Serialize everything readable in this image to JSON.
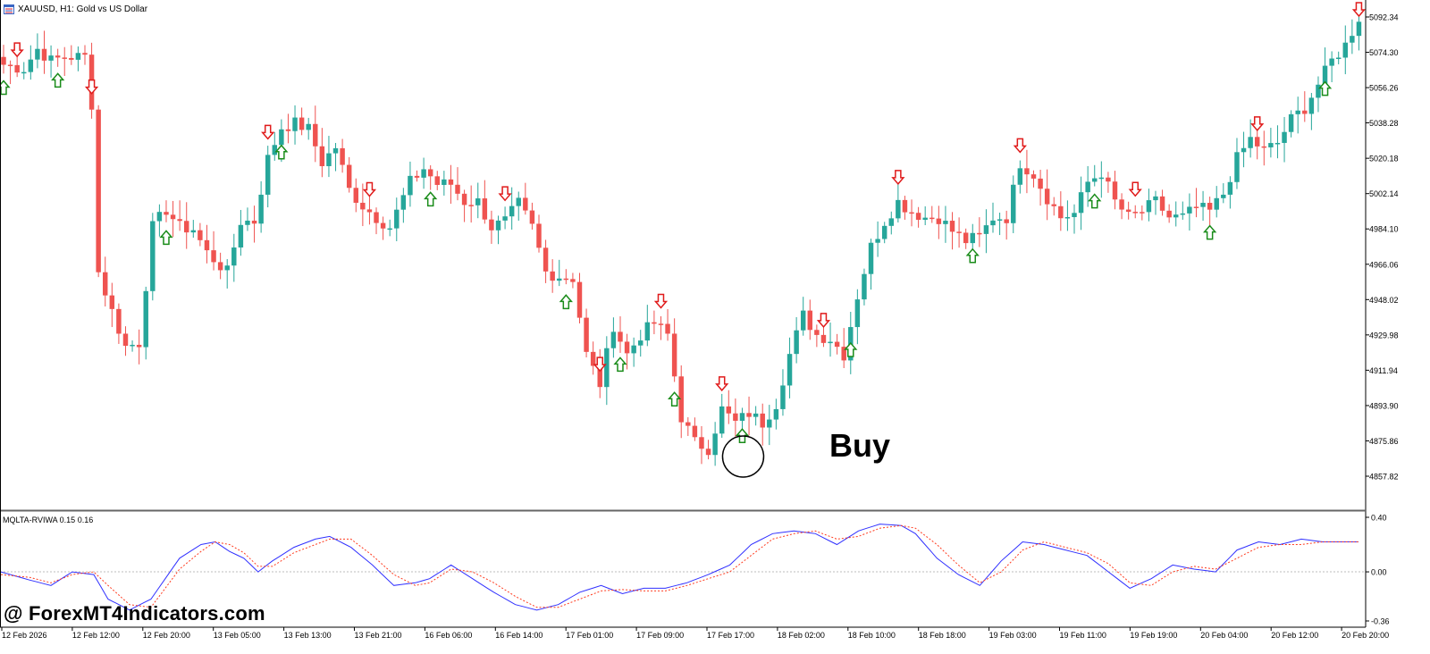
{
  "header": {
    "symbol_title": "XAUUSD, H1:  Gold vs US Dollar",
    "icon": "chart-window-icon"
  },
  "indicator": {
    "label": "MQLTA-RVIWA 0.15 0.16",
    "levels": [
      "0.40",
      "0.00",
      "-0.36"
    ]
  },
  "watermark": "@ ForexMT4Indicators.com",
  "annotation": {
    "text": "Buy"
  },
  "colors": {
    "bull": "#26a69a",
    "bear": "#ef5350",
    "arrow_up": "#1a8c1a",
    "arrow_down": "#e01b1b",
    "rvi_main": "#3030ff",
    "rvi_signal": "#ff3b1f",
    "axis": "#000000",
    "zero_line": "#bdbdbd"
  },
  "chart_data": [
    {
      "type": "candlestick",
      "price_levels": [
        "5092.34",
        "5074.30",
        "5056.26",
        "5038.28",
        "5020.18",
        "5002.14",
        "4984.10",
        "4966.06",
        "4948.02",
        "4929.98",
        "4911.94",
        "4893.90",
        "4875.86",
        "4857.82"
      ],
      "time_labels": [
        "12 Feb 2026",
        "12 Feb 12:00",
        "12 Feb 20:00",
        "13 Feb 05:00",
        "13 Feb 13:00",
        "13 Feb 21:00",
        "16 Feb 06:00",
        "16 Feb 14:00",
        "17 Feb 01:00",
        "17 Feb 09:00",
        "17 Feb 17:00",
        "18 Feb 02:00",
        "18 Feb 10:00",
        "18 Feb 18:00",
        "19 Feb 03:00",
        "19 Feb 11:00",
        "19 Feb 19:00",
        "20 Feb 04:00",
        "20 Feb 12:00",
        "20 Feb 20:00"
      ],
      "anchors": [
        [
          0,
          5068
        ],
        [
          3,
          5066
        ],
        [
          5,
          5076
        ],
        [
          7,
          5070
        ],
        [
          9,
          5072
        ],
        [
          12,
          5072
        ],
        [
          13,
          5048
        ],
        [
          14,
          4962
        ],
        [
          16,
          4942
        ],
        [
          18,
          4924
        ],
        [
          20,
          4926
        ],
        [
          22,
          4985
        ],
        [
          24,
          4994
        ],
        [
          26,
          4985
        ],
        [
          28,
          4984
        ],
        [
          30,
          4972
        ],
        [
          33,
          4962
        ],
        [
          35,
          4988
        ],
        [
          37,
          4988
        ],
        [
          39,
          5020
        ],
        [
          41,
          5036
        ],
        [
          43,
          5038
        ],
        [
          45,
          5035
        ],
        [
          47,
          5018
        ],
        [
          49,
          5026
        ],
        [
          51,
          5004
        ],
        [
          53,
          4996
        ],
        [
          55,
          4990
        ],
        [
          57,
          4985
        ],
        [
          60,
          5008
        ],
        [
          62,
          5015
        ],
        [
          64,
          5007
        ],
        [
          66,
          5007
        ],
        [
          68,
          4998
        ],
        [
          70,
          4998
        ],
        [
          72,
          4985
        ],
        [
          74,
          4988
        ],
        [
          76,
          4997
        ],
        [
          78,
          4985
        ],
        [
          80,
          4962
        ],
        [
          82,
          4960
        ],
        [
          84,
          4959
        ],
        [
          86,
          4920
        ],
        [
          88,
          4905
        ],
        [
          90,
          4935
        ],
        [
          92,
          4920
        ],
        [
          94,
          4930
        ],
        [
          96,
          4936
        ],
        [
          98,
          4930
        ],
        [
          100,
          4888
        ],
        [
          102,
          4875
        ],
        [
          104,
          4872
        ],
        [
          106,
          4892
        ],
        [
          108,
          4885
        ],
        [
          110,
          4890
        ],
        [
          112,
          4885
        ],
        [
          114,
          4895
        ],
        [
          116,
          4920
        ],
        [
          118,
          4940
        ],
        [
          120,
          4930
        ],
        [
          122,
          4928
        ],
        [
          124,
          4920
        ],
        [
          126,
          4950
        ],
        [
          128,
          4975
        ],
        [
          130,
          4988
        ],
        [
          132,
          4998
        ],
        [
          134,
          4993
        ],
        [
          136,
          4990
        ],
        [
          138,
          4990
        ],
        [
          140,
          4983
        ],
        [
          142,
          4978
        ],
        [
          144,
          4980
        ],
        [
          146,
          4990
        ],
        [
          148,
          4990
        ],
        [
          150,
          5018
        ],
        [
          152,
          5012
        ],
        [
          154,
          5000
        ],
        [
          156,
          4990
        ],
        [
          158,
          4992
        ],
        [
          160,
          5008
        ],
        [
          162,
          5013
        ],
        [
          164,
          4998
        ],
        [
          166,
          4990
        ],
        [
          168,
          4993
        ],
        [
          170,
          4998
        ],
        [
          172,
          4990
        ],
        [
          174,
          4990
        ],
        [
          176,
          4995
        ],
        [
          178,
          4993
        ],
        [
          180,
          5002
        ],
        [
          182,
          5020
        ],
        [
          184,
          5030
        ],
        [
          186,
          5024
        ],
        [
          188,
          5028
        ],
        [
          190,
          5040
        ],
        [
          192,
          5046
        ],
        [
          194,
          5058
        ],
        [
          196,
          5070
        ],
        [
          198,
          5078
        ],
        [
          200,
          5092
        ]
      ],
      "buy_arrows": [
        0,
        8,
        24,
        41,
        63,
        83,
        91,
        99,
        109,
        125,
        143,
        161,
        178,
        195
      ],
      "sell_arrows": [
        2,
        13,
        39,
        54,
        74,
        88,
        97,
        106,
        121,
        132,
        150,
        167,
        185,
        200
      ]
    },
    {
      "type": "line",
      "name": "MQLTA-RVIWA 0.15 0.16",
      "ylim": [
        -0.36,
        0.4
      ],
      "series": [
        {
          "name": "main",
          "anchors": [
            [
              0,
              0.0
            ],
            [
              4,
              -0.06
            ],
            [
              7,
              -0.1
            ],
            [
              10,
              0.0
            ],
            [
              13,
              -0.02
            ],
            [
              15,
              -0.2
            ],
            [
              18,
              -0.28
            ],
            [
              21,
              -0.2
            ],
            [
              25,
              0.1
            ],
            [
              28,
              0.2
            ],
            [
              30,
              0.22
            ],
            [
              32,
              0.15
            ],
            [
              34,
              0.1
            ],
            [
              36,
              0.0
            ],
            [
              38,
              0.08
            ],
            [
              41,
              0.18
            ],
            [
              44,
              0.24
            ],
            [
              46,
              0.26
            ],
            [
              49,
              0.18
            ],
            [
              52,
              0.05
            ],
            [
              55,
              -0.1
            ],
            [
              58,
              -0.08
            ],
            [
              60,
              -0.05
            ],
            [
              63,
              0.05
            ],
            [
              66,
              -0.05
            ],
            [
              69,
              -0.15
            ],
            [
              72,
              -0.24
            ],
            [
              75,
              -0.28
            ],
            [
              78,
              -0.24
            ],
            [
              81,
              -0.15
            ],
            [
              84,
              -0.1
            ],
            [
              87,
              -0.16
            ],
            [
              90,
              -0.12
            ],
            [
              93,
              -0.12
            ],
            [
              96,
              -0.08
            ],
            [
              99,
              -0.02
            ],
            [
              102,
              0.05
            ],
            [
              105,
              0.2
            ],
            [
              108,
              0.28
            ],
            [
              111,
              0.3
            ],
            [
              114,
              0.28
            ],
            [
              117,
              0.2
            ],
            [
              120,
              0.3
            ],
            [
              123,
              0.35
            ],
            [
              126,
              0.34
            ],
            [
              128,
              0.28
            ],
            [
              131,
              0.1
            ],
            [
              134,
              -0.02
            ],
            [
              137,
              -0.1
            ],
            [
              140,
              0.08
            ],
            [
              143,
              0.22
            ],
            [
              146,
              0.2
            ],
            [
              149,
              0.16
            ],
            [
              152,
              0.12
            ],
            [
              155,
              0.0
            ],
            [
              158,
              -0.12
            ],
            [
              161,
              -0.05
            ],
            [
              164,
              0.05
            ],
            [
              167,
              0.02
            ],
            [
              170,
              0.0
            ],
            [
              173,
              0.16
            ],
            [
              176,
              0.22
            ],
            [
              179,
              0.2
            ],
            [
              182,
              0.24
            ],
            [
              185,
              0.22
            ],
            [
              188,
              0.22
            ],
            [
              190,
              0.22
            ]
          ]
        },
        {
          "name": "signal",
          "anchors": [
            [
              0,
              -0.02
            ],
            [
              4,
              -0.04
            ],
            [
              7,
              -0.08
            ],
            [
              10,
              -0.02
            ],
            [
              13,
              0.0
            ],
            [
              15,
              -0.1
            ],
            [
              18,
              -0.24
            ],
            [
              21,
              -0.26
            ],
            [
              25,
              0.02
            ],
            [
              28,
              0.15
            ],
            [
              30,
              0.22
            ],
            [
              32,
              0.2
            ],
            [
              34,
              0.14
            ],
            [
              36,
              0.04
            ],
            [
              38,
              0.04
            ],
            [
              41,
              0.14
            ],
            [
              44,
              0.2
            ],
            [
              46,
              0.24
            ],
            [
              49,
              0.24
            ],
            [
              52,
              0.12
            ],
            [
              55,
              -0.02
            ],
            [
              58,
              -0.1
            ],
            [
              60,
              -0.08
            ],
            [
              63,
              0.02
            ],
            [
              66,
              0.0
            ],
            [
              69,
              -0.08
            ],
            [
              72,
              -0.18
            ],
            [
              75,
              -0.26
            ],
            [
              78,
              -0.26
            ],
            [
              81,
              -0.2
            ],
            [
              84,
              -0.14
            ],
            [
              87,
              -0.13
            ],
            [
              90,
              -0.14
            ],
            [
              93,
              -0.14
            ],
            [
              96,
              -0.1
            ],
            [
              99,
              -0.05
            ],
            [
              102,
              0.0
            ],
            [
              105,
              0.12
            ],
            [
              108,
              0.24
            ],
            [
              111,
              0.28
            ],
            [
              114,
              0.3
            ],
            [
              117,
              0.24
            ],
            [
              120,
              0.26
            ],
            [
              123,
              0.32
            ],
            [
              126,
              0.34
            ],
            [
              128,
              0.32
            ],
            [
              131,
              0.2
            ],
            [
              134,
              0.05
            ],
            [
              137,
              -0.08
            ],
            [
              140,
              0.0
            ],
            [
              143,
              0.16
            ],
            [
              146,
              0.22
            ],
            [
              149,
              0.18
            ],
            [
              152,
              0.14
            ],
            [
              155,
              0.06
            ],
            [
              158,
              -0.08
            ],
            [
              161,
              -0.1
            ],
            [
              164,
              0.0
            ],
            [
              167,
              0.04
            ],
            [
              170,
              0.02
            ],
            [
              173,
              0.1
            ],
            [
              176,
              0.18
            ],
            [
              179,
              0.2
            ],
            [
              182,
              0.2
            ],
            [
              185,
              0.22
            ],
            [
              188,
              0.22
            ],
            [
              190,
              0.22
            ]
          ]
        }
      ]
    }
  ]
}
